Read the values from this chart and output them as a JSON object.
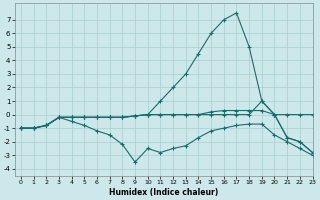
{
  "xlabel": "Humidex (Indice chaleur)",
  "bg_color": "#cce8ea",
  "grid_color": "#aacdd0",
  "line_color": "#1a6b6b",
  "xlim": [
    -0.5,
    23
  ],
  "ylim": [
    -4.5,
    8.2
  ],
  "xticks": [
    0,
    1,
    2,
    3,
    4,
    5,
    6,
    7,
    8,
    9,
    10,
    11,
    12,
    13,
    14,
    15,
    16,
    17,
    18,
    19,
    20,
    21,
    22,
    23
  ],
  "yticks": [
    -4,
    -3,
    -2,
    -1,
    0,
    1,
    2,
    3,
    4,
    5,
    6,
    7
  ],
  "line1_x": [
    0,
    1,
    2,
    3,
    4,
    5,
    6,
    7,
    8,
    9,
    10,
    11,
    12,
    13,
    14,
    15,
    16,
    17,
    18,
    19,
    20,
    21,
    22,
    23
  ],
  "line1_y": [
    -1,
    -1,
    -0.8,
    -0.2,
    -0.2,
    -0.2,
    -0.2,
    -0.2,
    -0.2,
    -0.1,
    0,
    0,
    0,
    0,
    0,
    0.2,
    0.3,
    0.3,
    0.3,
    0.3,
    0,
    0,
    0,
    0
  ],
  "line2_x": [
    0,
    1,
    2,
    3,
    4,
    5,
    6,
    7,
    8,
    9,
    10,
    11,
    12,
    13,
    14,
    15,
    16,
    17,
    18,
    19,
    20,
    21,
    22,
    23
  ],
  "line2_y": [
    -1,
    -1,
    -0.8,
    -0.2,
    -0.2,
    -0.2,
    -0.2,
    -0.2,
    -0.2,
    -0.1,
    0,
    1,
    2,
    3,
    4.5,
    6,
    7,
    7.5,
    5,
    1.0,
    0,
    -1.7,
    -2.0,
    -2.8
  ],
  "line3_x": [
    0,
    1,
    2,
    3,
    4,
    5,
    6,
    7,
    8,
    9,
    10,
    11,
    12,
    13,
    14,
    15,
    16,
    17,
    18,
    19,
    20,
    21,
    22,
    23
  ],
  "line3_y": [
    -1,
    -1,
    -0.8,
    -0.2,
    -0.2,
    -0.2,
    -0.2,
    -0.2,
    -0.2,
    -0.1,
    0,
    0,
    0,
    0,
    0,
    0,
    0,
    0,
    0,
    1.0,
    0,
    -1.7,
    -2.0,
    -2.8
  ],
  "line4_x": [
    0,
    1,
    2,
    3,
    4,
    5,
    6,
    7,
    8,
    9,
    10,
    11,
    12,
    13,
    14,
    15,
    16,
    17,
    18,
    19,
    20,
    21,
    22,
    23
  ],
  "line4_y": [
    -1,
    -1,
    -0.8,
    -0.2,
    -0.5,
    -0.8,
    -1.2,
    -1.5,
    -2.2,
    -3.5,
    -2.5,
    -2.8,
    -2.5,
    -2.3,
    -1.7,
    -1.2,
    -1.0,
    -0.8,
    -0.7,
    -0.7,
    -1.5,
    -2,
    -2.5,
    -3.0
  ]
}
